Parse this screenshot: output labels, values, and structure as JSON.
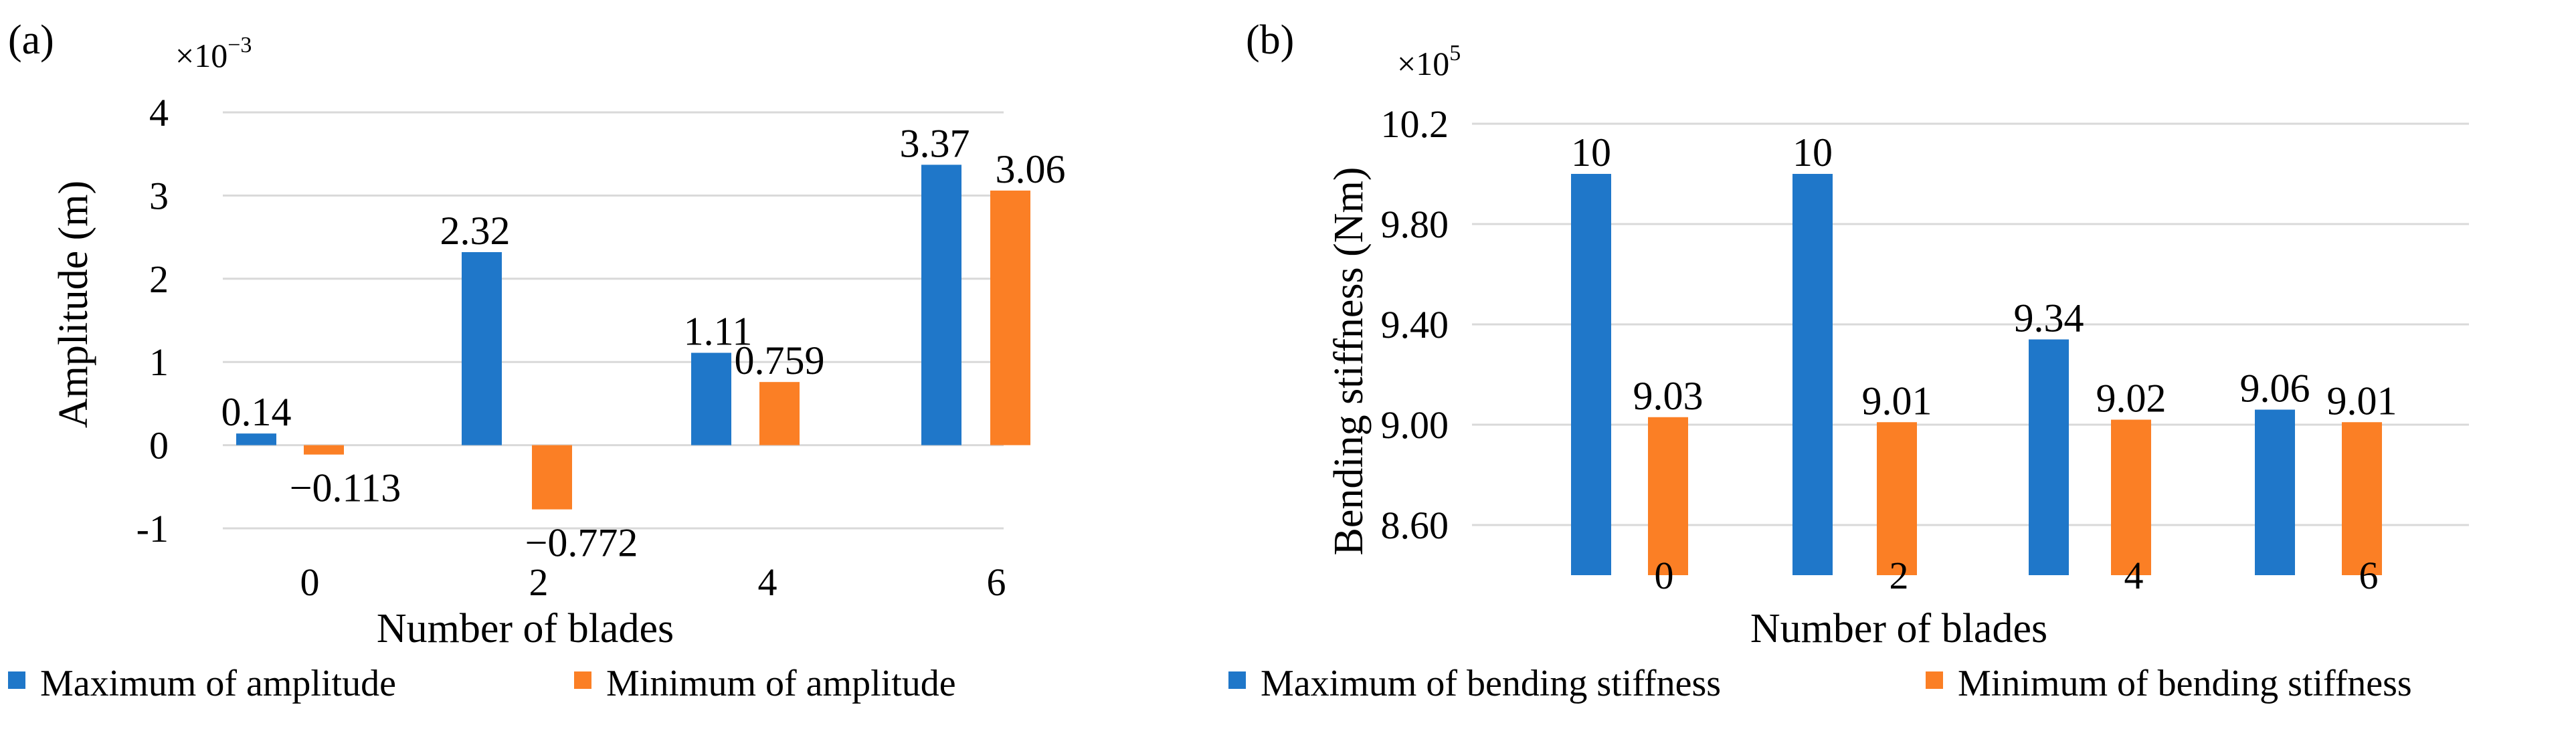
{
  "chart_data": [
    {
      "type": "bar",
      "panel": "(a)",
      "multiplier_base": "×10",
      "multiplier_exp": "−3",
      "categories": [
        "0",
        "2",
        "4",
        "6"
      ],
      "series": [
        {
          "name": "Maximum of amplitude",
          "color": "#1f77c9",
          "values": [
            0.14,
            2.32,
            1.11,
            3.37
          ],
          "labels": [
            "0.14",
            "2.32",
            "1.11",
            "3.37"
          ]
        },
        {
          "name": "Minimum of amplitude",
          "color": "#fb7f25",
          "values": [
            -0.113,
            -0.772,
            0.759,
            3.06
          ],
          "labels": [
            "−0.113",
            "−0.772",
            "0.759",
            "3.06"
          ]
        }
      ],
      "xlabel": "Number of blades",
      "ylabel": "Amplitude (m)",
      "ylim": [
        -1,
        4
      ],
      "yticks": [
        4,
        3,
        2,
        1,
        0,
        -1
      ],
      "ytick_labels": [
        "4",
        "3",
        "2",
        "1",
        "0",
        "-1"
      ],
      "grid": true,
      "legend": "bottom"
    },
    {
      "type": "bar",
      "panel": "(b)",
      "multiplier_base": "×10",
      "multiplier_exp": "5",
      "categories": [
        "0",
        "2",
        "4",
        "6"
      ],
      "series": [
        {
          "name": "Maximum of bending stiffness",
          "color": "#1f77c9",
          "values": [
            10,
            10,
            9.34,
            9.06
          ],
          "labels": [
            "10",
            "10",
            "9.34",
            "9.06"
          ]
        },
        {
          "name": "Minimum of bending stiffness",
          "color": "#fb7f25",
          "values": [
            9.03,
            9.01,
            9.02,
            9.01
          ],
          "labels": [
            "9.03",
            "9.01",
            "9.02",
            "9.01"
          ]
        }
      ],
      "xlabel": "Number of blades",
      "ylabel": "Bending stiffness  (Nm)",
      "ylim": [
        8.4,
        10.3
      ],
      "yticks": [
        10.2,
        9.8,
        9.4,
        9.0,
        8.6
      ],
      "ytick_labels": [
        "10.2",
        "9.80",
        "9.40",
        "9.00",
        "8.60"
      ],
      "grid": true,
      "legend": "bottom"
    }
  ]
}
